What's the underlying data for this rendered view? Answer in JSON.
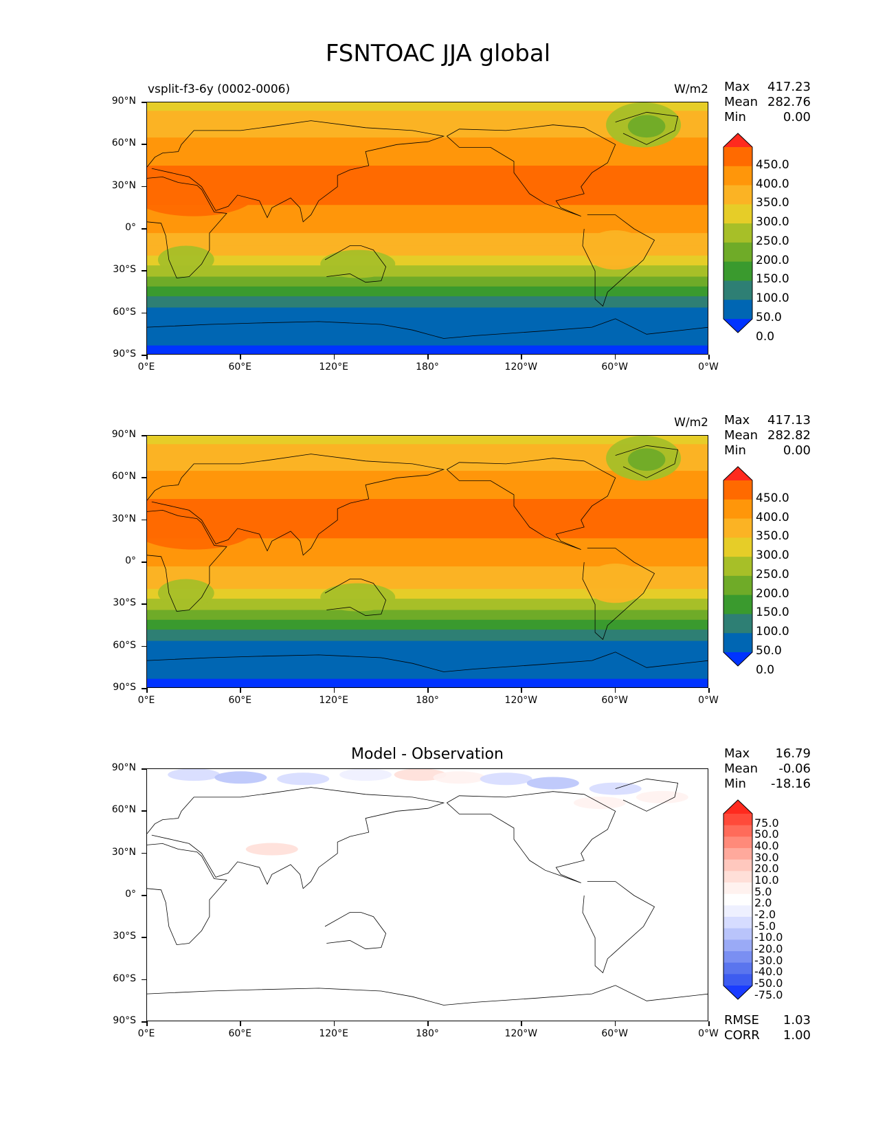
{
  "figure": {
    "title": "FSNTOAC JJA global"
  },
  "axes": {
    "lat_ticks": [
      "90°N",
      "60°N",
      "30°N",
      "0°",
      "30°S",
      "60°S",
      "90°S"
    ],
    "lon_ticks": [
      "0°E",
      "60°E",
      "120°E",
      "180°",
      "120°W",
      "60°W",
      "0°W"
    ]
  },
  "chart_data": [
    {
      "type": "heatmap",
      "title_left": "vsplit-f3-6y (0002-0006)",
      "title_center": "",
      "units": "W/m2",
      "stats": {
        "max_label": "Max",
        "max": "417.23",
        "mean_label": "Mean",
        "mean": "282.76",
        "min_label": "Min",
        "min": "0.00"
      },
      "colorbar": {
        "levels": [
          "450.0",
          "400.0",
          "350.0",
          "300.0",
          "250.0",
          "200.0",
          "150.0",
          "100.0",
          "50.0",
          "0.0"
        ],
        "colors": [
          "#ff2a1e",
          "#ff6a00",
          "#ff960a",
          "#fbb324",
          "#e6cd28",
          "#a7bf28",
          "#6fab28",
          "#3a9a2e",
          "#2e7f74",
          "#0066b3",
          "#0033ff"
        ]
      },
      "zonal_bands": [
        {
          "lat_from": 90,
          "lat_to": 84,
          "value": 275
        },
        {
          "lat_from": 84,
          "lat_to": 65,
          "value": 315
        },
        {
          "lat_from": 65,
          "lat_to": 45,
          "value": 360
        },
        {
          "lat_from": 45,
          "lat_to": 17,
          "value": 410
        },
        {
          "lat_from": 17,
          "lat_to": -3,
          "value": 370
        },
        {
          "lat_from": -3,
          "lat_to": -12,
          "value": 340
        },
        {
          "lat_from": -12,
          "lat_to": -19,
          "value": 320
        },
        {
          "lat_from": -19,
          "lat_to": -26,
          "value": 275
        },
        {
          "lat_from": -26,
          "lat_to": -34,
          "value": 225
        },
        {
          "lat_from": -34,
          "lat_to": -41,
          "value": 175
        },
        {
          "lat_from": -41,
          "lat_to": -48,
          "value": 125
        },
        {
          "lat_from": -48,
          "lat_to": -56,
          "value": 75
        },
        {
          "lat_from": -56,
          "lat_to": -83,
          "value": 25
        },
        {
          "lat_from": -83,
          "lat_to": -90,
          "value": -5
        }
      ]
    },
    {
      "type": "heatmap",
      "title_left": "",
      "title_center": "",
      "units": "W/m2",
      "stats": {
        "max_label": "Max",
        "max": "417.13",
        "mean_label": "Mean",
        "mean": "282.82",
        "min_label": "Min",
        "min": "0.00"
      },
      "colorbar": {
        "levels": [
          "450.0",
          "400.0",
          "350.0",
          "300.0",
          "250.0",
          "200.0",
          "150.0",
          "100.0",
          "50.0",
          "0.0"
        ],
        "colors": [
          "#ff2a1e",
          "#ff6a00",
          "#ff960a",
          "#fbb324",
          "#e6cd28",
          "#a7bf28",
          "#6fab28",
          "#3a9a2e",
          "#2e7f74",
          "#0066b3",
          "#0033ff"
        ]
      },
      "zonal_bands": [
        {
          "lat_from": 90,
          "lat_to": 84,
          "value": 275
        },
        {
          "lat_from": 84,
          "lat_to": 65,
          "value": 315
        },
        {
          "lat_from": 65,
          "lat_to": 45,
          "value": 360
        },
        {
          "lat_from": 45,
          "lat_to": 17,
          "value": 410
        },
        {
          "lat_from": 17,
          "lat_to": -3,
          "value": 370
        },
        {
          "lat_from": -3,
          "lat_to": -12,
          "value": 340
        },
        {
          "lat_from": -12,
          "lat_to": -19,
          "value": 320
        },
        {
          "lat_from": -19,
          "lat_to": -26,
          "value": 275
        },
        {
          "lat_from": -26,
          "lat_to": -34,
          "value": 225
        },
        {
          "lat_from": -34,
          "lat_to": -41,
          "value": 175
        },
        {
          "lat_from": -41,
          "lat_to": -48,
          "value": 125
        },
        {
          "lat_from": -48,
          "lat_to": -56,
          "value": 75
        },
        {
          "lat_from": -56,
          "lat_to": -83,
          "value": 25
        },
        {
          "lat_from": -83,
          "lat_to": -90,
          "value": -5
        }
      ]
    },
    {
      "type": "heatmap",
      "title_left": "",
      "title_center": "Model - Observation",
      "units": "",
      "stats": {
        "max_label": "Max",
        "max": "16.79",
        "mean_label": "Mean",
        "mean": "-0.06",
        "min_label": "Min",
        "min": "-18.16"
      },
      "metrics": {
        "rmse_label": "RMSE",
        "rmse": "1.03",
        "corr_label": "CORR",
        "corr": "1.00"
      },
      "colorbar": {
        "levels": [
          "75.0",
          "50.0",
          "40.0",
          "30.0",
          "20.0",
          "10.0",
          "5.0",
          "2.0",
          "-2.0",
          "-5.0",
          "-10.0",
          "-20.0",
          "-30.0",
          "-40.0",
          "-50.0",
          "-75.0"
        ],
        "colors": [
          "#ff2a1e",
          "#ff4a3a",
          "#ff6b5a",
          "#ff8a7a",
          "#ffa99c",
          "#ffc8be",
          "#ffdfd8",
          "#fff2ef",
          "#ffffff",
          "#eef0ff",
          "#d6dcff",
          "#b9c4fb",
          "#9aaaf6",
          "#7a8ff2",
          "#5a75ee",
          "#3d5cf0",
          "#1a3cff"
        ]
      },
      "anomalies": [
        {
          "lon": 30,
          "lat": 86,
          "value": -8
        },
        {
          "lon": 60,
          "lat": 84,
          "value": -12
        },
        {
          "lon": 100,
          "lat": 83,
          "value": -8
        },
        {
          "lon": 140,
          "lat": 86,
          "value": -5
        },
        {
          "lon": 175,
          "lat": 86,
          "value": 5
        },
        {
          "lon": 200,
          "lat": 84,
          "value": 3
        },
        {
          "lon": 230,
          "lat": 83,
          "value": -6
        },
        {
          "lon": 260,
          "lat": 80,
          "value": -14
        },
        {
          "lon": 300,
          "lat": 76,
          "value": -10
        },
        {
          "lon": 330,
          "lat": 70,
          "value": 4
        },
        {
          "lon": 80,
          "lat": 33,
          "value": 7
        },
        {
          "lon": 290,
          "lat": 66,
          "value": 3
        }
      ]
    }
  ]
}
